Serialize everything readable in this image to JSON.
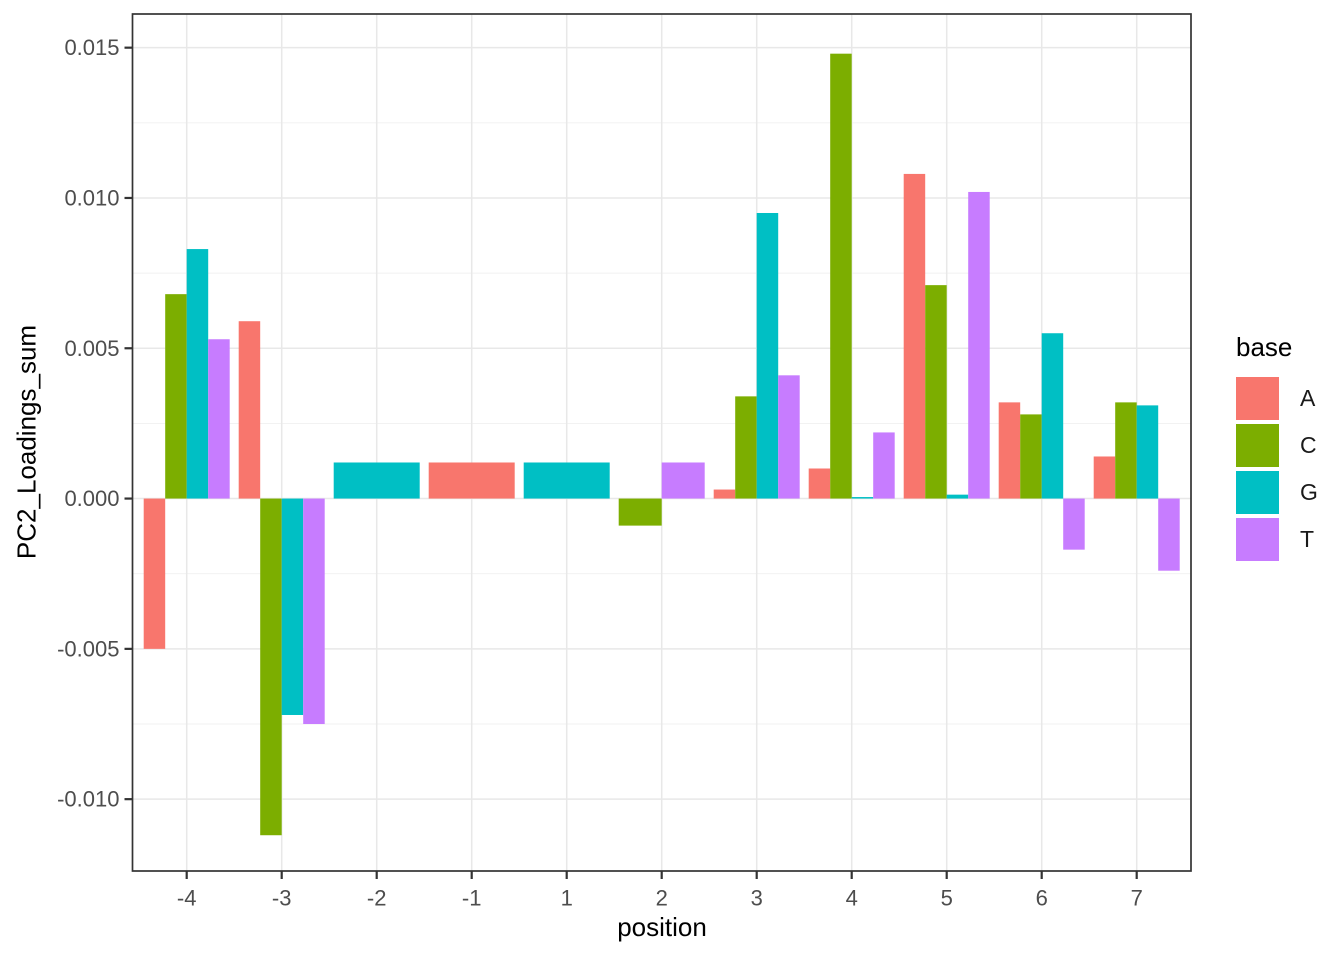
{
  "chart_data": {
    "type": "bar",
    "title": "",
    "xlabel": "position",
    "ylabel": "PC2_Loadings_sum",
    "legend_title": "base",
    "legend_position": "right",
    "grid": true,
    "categories": [
      -4,
      -3,
      -2,
      -1,
      1,
      2,
      3,
      4,
      5,
      6,
      7
    ],
    "x_tick_labels": [
      "-4",
      "-3",
      "-2",
      "-1",
      "1",
      "2",
      "3",
      "4",
      "5",
      "6",
      "7"
    ],
    "series": [
      {
        "name": "A",
        "color": "#F8766D",
        "values": [
          -0.005,
          0.0059,
          null,
          0.0012,
          null,
          null,
          0.0003,
          0.001,
          0.0108,
          0.0032,
          0.0014
        ]
      },
      {
        "name": "C",
        "color": "#7CAE00",
        "values": [
          0.0068,
          -0.0112,
          null,
          null,
          null,
          -0.0009,
          0.0034,
          0.0148,
          0.0071,
          0.0028,
          0.0032
        ]
      },
      {
        "name": "G",
        "color": "#00BFC4",
        "values": [
          0.0083,
          -0.0072,
          0.0012,
          null,
          0.0012,
          null,
          0.0095,
          5e-05,
          0.00013,
          0.0055,
          0.0031
        ]
      },
      {
        "name": "T",
        "color": "#C77CFF",
        "values": [
          0.0053,
          -0.0075,
          null,
          null,
          null,
          0.0012,
          0.0041,
          0.0022,
          0.0102,
          -0.0017,
          -0.0024
        ]
      }
    ],
    "y_ticks": [
      -0.01,
      -0.005,
      0.0,
      0.005,
      0.01,
      0.015
    ],
    "y_tick_labels": [
      "-0.010",
      "-0.005",
      "0.000",
      "0.005",
      "0.010",
      "0.015"
    ],
    "y_minor_ticks": [
      -0.0075,
      -0.0025,
      0.0025,
      0.0075,
      0.0125
    ],
    "ylim": [
      -0.01239,
      0.01612
    ]
  },
  "style": {
    "grid_major_color": "#E8E8E8",
    "grid_minor_color": "#F0F0F0",
    "panel_border_color": "#333333",
    "tick_mark_color": "#333333",
    "tick_label_color": "#4D4D4D",
    "panel_background": "#FFFFFF"
  }
}
